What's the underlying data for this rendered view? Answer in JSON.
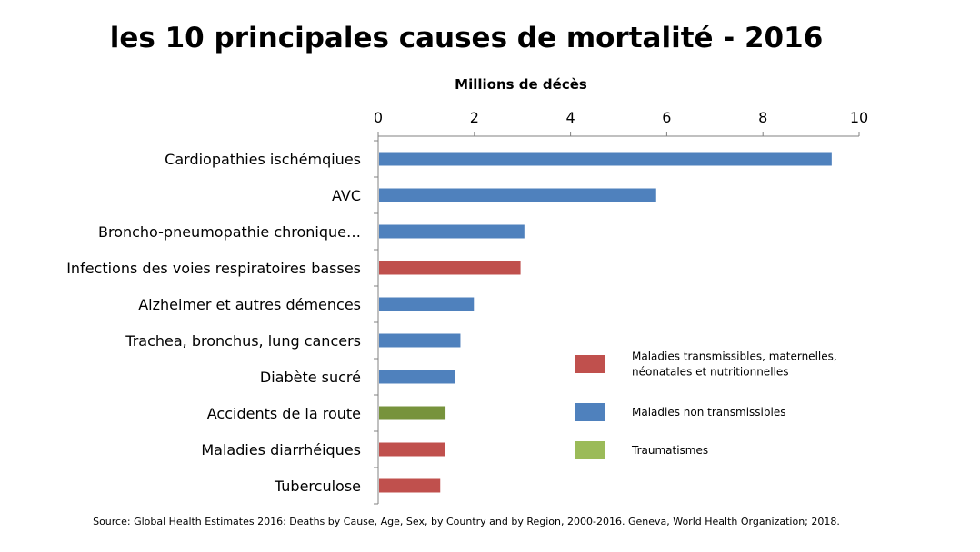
{
  "chart_data": {
    "type": "bar",
    "orientation": "horizontal",
    "title": "les 10 principales causes de mortalité - 2016",
    "xlabel": "Millions de décès",
    "ylabel": "",
    "xlim": [
      0,
      10
    ],
    "x_ticks": [
      "0",
      "2",
      "4",
      "6",
      "8",
      "10"
    ],
    "x_tick_values": [
      0,
      2,
      4,
      6,
      8,
      10
    ],
    "axis_position": "top",
    "grid": false,
    "legend_position": "right",
    "categories": [
      "Cardiopathies ischémqiues",
      "AVC",
      "Broncho-pneumopathie chronique…",
      "Infections des voies respiratoires basses",
      "Alzheimer et autres démences",
      "Trachea, bronchus, lung cancers",
      "Diabète sucré",
      "Accidents de la route",
      "Maladies diarrhéiques",
      "Tuberculose"
    ],
    "values": [
      9.43,
      5.78,
      3.04,
      2.96,
      1.99,
      1.71,
      1.6,
      1.4,
      1.38,
      1.29
    ],
    "bar_groups": [
      "non_transmissibles",
      "non_transmissibles",
      "non_transmissibles",
      "transmissibles",
      "non_transmissibles",
      "non_transmissibles",
      "non_transmissibles",
      "traumatismes",
      "transmissibles",
      "transmissibles"
    ],
    "legend": [
      {
        "key": "transmissibles",
        "lines": [
          "Maladies transmissibles, maternelles,",
          "néonatales et nutritionnelles"
        ],
        "color": "#c0504d"
      },
      {
        "key": "non_transmissibles",
        "lines": [
          "Maladies non transmissibles"
        ],
        "color": "#4f81bd"
      },
      {
        "key": "traumatismes",
        "lines": [
          "Traumatismes"
        ],
        "color": "#9bbb59"
      }
    ],
    "bar_colors": {
      "transmissibles": "#c0504d",
      "non_transmissibles": "#4f81bd",
      "traumatismes": "#77933c"
    },
    "source": "Source: Global Health Estimates 2016: Deaths by Cause, Age, Sex, by Country and by Region, 2000-2016. Geneva, World Health Organization; 2018."
  }
}
